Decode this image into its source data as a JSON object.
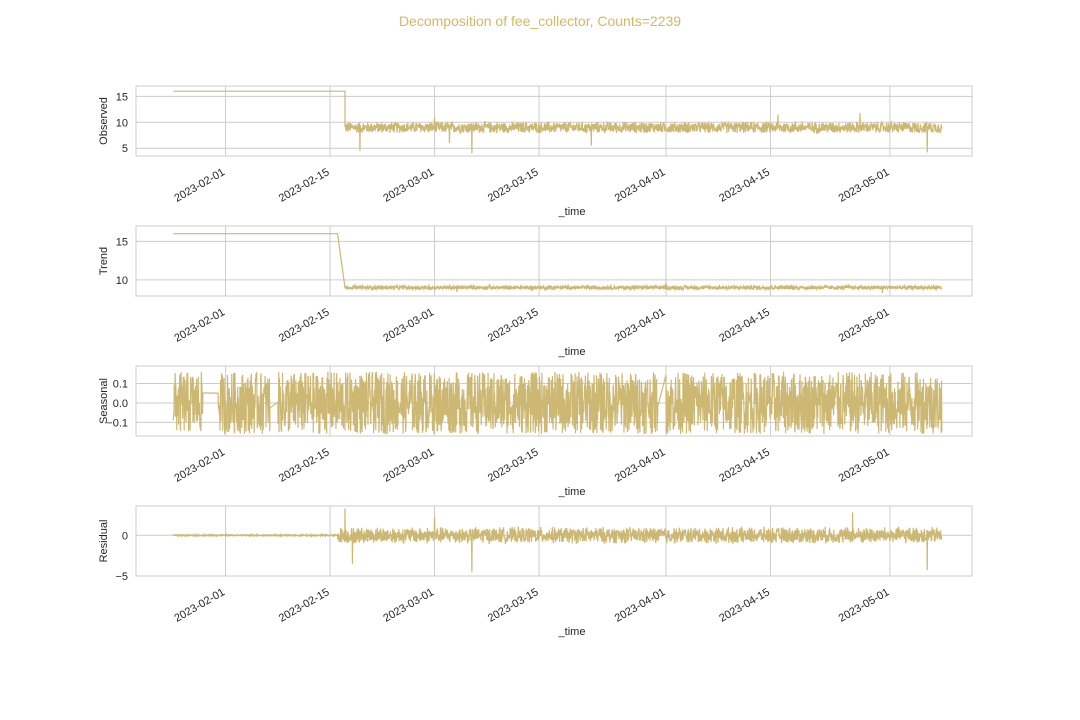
{
  "figure": {
    "title": "Decomposition of fee_collector, Counts=2239",
    "title_color": "#d4b862",
    "line_color": "#cdb873",
    "grid_color": "#cccccc",
    "frame_color": "#cccccc"
  },
  "chart_data": [
    {
      "type": "line",
      "title": "",
      "ylabel": "Observed",
      "xlabel": "_time",
      "x_range": [
        "2023-01-20",
        "2023-05-12"
      ],
      "x_ticks": [
        "2023-02-01",
        "2023-02-15",
        "2023-03-01",
        "2023-03-15",
        "2023-04-01",
        "2023-04-15",
        "2023-05-01"
      ],
      "ylim": [
        3.5,
        17
      ],
      "y_ticks": [
        5,
        10,
        15
      ],
      "grid": true,
      "series": [
        {
          "segments": [
            {
              "start": "2023-01-25",
              "end": "2023-02-17",
              "constant": 16
            },
            {
              "start": "2023-02-17",
              "end": "2023-05-08",
              "mean": 9.0,
              "amplitude": 1.2,
              "spikes": [
                {
                  "x": "2023-02-19",
                  "y": 4.5
                },
                {
                  "x": "2023-03-03",
                  "y": 6.0
                },
                {
                  "x": "2023-03-06",
                  "y": 4.0
                },
                {
                  "x": "2023-03-22",
                  "y": 5.5
                },
                {
                  "x": "2023-04-16",
                  "y": 11.5
                },
                {
                  "x": "2023-04-27",
                  "y": 11.8
                },
                {
                  "x": "2023-05-06",
                  "y": 4.2
                },
                {
                  "x": "2023-03-01",
                  "y": 11.0
                }
              ]
            }
          ]
        }
      ]
    },
    {
      "type": "line",
      "title": "",
      "ylabel": "Trend",
      "xlabel": "_time",
      "x_range": [
        "2023-01-20",
        "2023-05-12"
      ],
      "x_ticks": [
        "2023-02-01",
        "2023-02-15",
        "2023-03-01",
        "2023-03-15",
        "2023-04-01",
        "2023-04-15",
        "2023-05-01"
      ],
      "ylim": [
        7.9,
        17
      ],
      "y_ticks": [
        10,
        15
      ],
      "grid": true,
      "series": [
        {
          "segments": [
            {
              "start": "2023-01-25",
              "end": "2023-02-16",
              "constant": 16
            },
            {
              "start": "2023-02-16",
              "end": "2023-02-17",
              "ramp": [
                16,
                9.0
              ]
            },
            {
              "start": "2023-02-17",
              "end": "2023-05-08",
              "mean": 9.0,
              "amplitude": 0.3,
              "spikes": [
                {
                  "x": "2023-03-04",
                  "y": 8.4
                },
                {
                  "x": "2023-04-01",
                  "y": 9.7
                },
                {
                  "x": "2023-04-30",
                  "y": 8.3
                },
                {
                  "x": "2023-05-02",
                  "y": 9.3
                }
              ]
            }
          ]
        }
      ]
    },
    {
      "type": "line",
      "title": "",
      "ylabel": "Seasonal",
      "xlabel": "_time",
      "x_range": [
        "2023-01-20",
        "2023-05-12"
      ],
      "x_ticks": [
        "2023-02-01",
        "2023-02-15",
        "2023-03-01",
        "2023-03-15",
        "2023-04-01",
        "2023-04-15",
        "2023-05-01"
      ],
      "ylim": [
        -0.17,
        0.19
      ],
      "y_ticks": [
        -0.1,
        0.0,
        0.1
      ],
      "grid": true,
      "series": [
        {
          "segments": [
            {
              "start": "2023-01-25",
              "end": "2023-05-08",
              "mean": 0.0,
              "amplitude": 0.16,
              "periodic": true,
              "gaps": [
                [
                  "2023-01-29",
                  "2023-01-31"
                ],
                [
                  "2023-02-07",
                  "2023-02-08"
                ],
                [
                  "2023-03-31",
                  "2023-04-01"
                ]
              ]
            }
          ]
        }
      ]
    },
    {
      "type": "line",
      "title": "",
      "ylabel": "Residual",
      "xlabel": "_time",
      "x_range": [
        "2023-01-20",
        "2023-05-12"
      ],
      "x_ticks": [
        "2023-02-01",
        "2023-02-15",
        "2023-03-01",
        "2023-03-15",
        "2023-04-01",
        "2023-04-15",
        "2023-05-01"
      ],
      "ylim": [
        -5,
        3.6
      ],
      "y_ticks": [
        -5,
        0
      ],
      "grid": true,
      "series": [
        {
          "segments": [
            {
              "start": "2023-01-25",
              "end": "2023-02-16",
              "mean": 0.0,
              "amplitude": 0.1
            },
            {
              "start": "2023-02-16",
              "end": "2023-05-08",
              "mean": 0.0,
              "amplitude": 1.1,
              "spikes": [
                {
                  "x": "2023-02-17",
                  "y": 3.3
                },
                {
                  "x": "2023-02-18",
                  "y": -3.5
                },
                {
                  "x": "2023-03-06",
                  "y": -4.5
                },
                {
                  "x": "2023-03-01",
                  "y": 2.3
                },
                {
                  "x": "2023-04-26",
                  "y": 2.8
                },
                {
                  "x": "2023-05-06",
                  "y": -4.3
                }
              ]
            }
          ]
        }
      ]
    }
  ]
}
